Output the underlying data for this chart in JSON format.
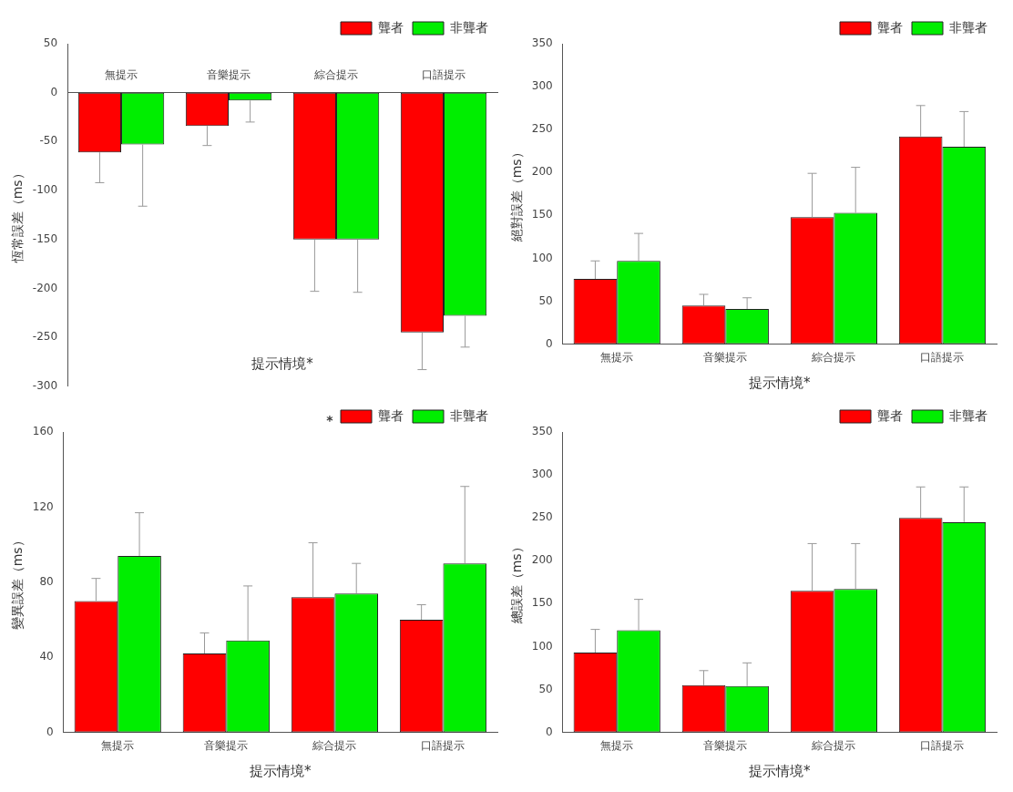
{
  "chart_data": [
    {
      "type": "bar",
      "ylabel": "恆常誤差（ms）",
      "xlabel": "提示情境*",
      "categories": [
        "無提示",
        "音樂提示",
        "綜合提示",
        "口語提示"
      ],
      "series": [
        {
          "name": "聾者",
          "color": "#ff0000",
          "values": [
            -61,
            -34,
            -150,
            -245
          ],
          "errors": [
            [
              -92,
              -61
            ],
            [
              -54,
              -34
            ],
            [
              -203,
              -150
            ],
            [
              -283,
              -245
            ]
          ]
        },
        {
          "name": "非聾者",
          "color": "#00ee00",
          "values": [
            -53,
            -8,
            -150,
            -228
          ],
          "errors": [
            [
              -116,
              -53
            ],
            [
              -30,
              -8
            ],
            [
              -204,
              -150
            ],
            [
              -260,
              -228
            ]
          ]
        }
      ],
      "ylim": [
        -300,
        50
      ],
      "yticks": [
        -300,
        -250,
        -200,
        -150,
        -100,
        -50,
        0,
        50
      ],
      "grid": false,
      "legend": "top right"
    },
    {
      "type": "bar",
      "ylabel": "絕對誤差（ms）",
      "xlabel": "提示情境*",
      "categories": [
        "無提示",
        "音樂提示",
        "綜合提示",
        "口語提示"
      ],
      "series": [
        {
          "name": "聾者",
          "color": "#ff0000",
          "values": [
            76,
            45,
            148,
            242
          ],
          "errors": [
            [
              76,
              97
            ],
            [
              45,
              58
            ],
            [
              148,
              199
            ],
            [
              242,
              278
            ]
          ]
        },
        {
          "name": "非聾者",
          "color": "#00ee00",
          "values": [
            97,
            41,
            153,
            230
          ],
          "errors": [
            [
              97,
              129
            ],
            [
              41,
              54
            ],
            [
              153,
              206
            ],
            [
              230,
              271
            ]
          ]
        }
      ],
      "ylim": [
        0,
        350
      ],
      "yticks": [
        0,
        50,
        100,
        150,
        200,
        250,
        300,
        350
      ],
      "grid": false,
      "legend": "top right"
    },
    {
      "type": "bar",
      "ylabel": "變異誤差（ms）",
      "xlabel": "提示情境*",
      "categories": [
        "無提示",
        "音樂提示",
        "綜合提示",
        "口語提示"
      ],
      "series": [
        {
          "name": "聾者",
          "color": "#ff0000",
          "values": [
            70,
            42,
            72,
            60
          ],
          "errors": [
            [
              70,
              82
            ],
            [
              42,
              53
            ],
            [
              72,
              101
            ],
            [
              60,
              68
            ]
          ]
        },
        {
          "name": "非聾者",
          "color": "#00ee00",
          "values": [
            94,
            49,
            74,
            90
          ],
          "errors": [
            [
              94,
              117
            ],
            [
              49,
              78
            ],
            [
              74,
              90
            ],
            [
              90,
              131
            ]
          ]
        }
      ],
      "ylim": [
        0,
        160
      ],
      "yticks": [
        0,
        40,
        80,
        120,
        160
      ],
      "grid": false,
      "legend": "top right",
      "annotations": [
        "*"
      ]
    },
    {
      "type": "bar",
      "ylabel": "總誤差（ms）",
      "xlabel": "提示情境*",
      "categories": [
        "無提示",
        "音樂提示",
        "綜合提示",
        "口語提示"
      ],
      "series": [
        {
          "name": "聾者",
          "color": "#ff0000",
          "values": [
            93,
            55,
            165,
            250
          ],
          "errors": [
            [
              93,
              120
            ],
            [
              55,
              72
            ],
            [
              165,
              220
            ],
            [
              250,
              286
            ]
          ]
        },
        {
          "name": "非聾者",
          "color": "#00ee00",
          "values": [
            119,
            54,
            167,
            245
          ],
          "errors": [
            [
              119,
              155
            ],
            [
              54,
              81
            ],
            [
              167,
              220
            ],
            [
              245,
              286
            ]
          ]
        }
      ],
      "ylim": [
        0,
        350
      ],
      "yticks": [
        0,
        50,
        100,
        150,
        200,
        250,
        300,
        350
      ],
      "grid": false,
      "legend": "top right"
    }
  ]
}
